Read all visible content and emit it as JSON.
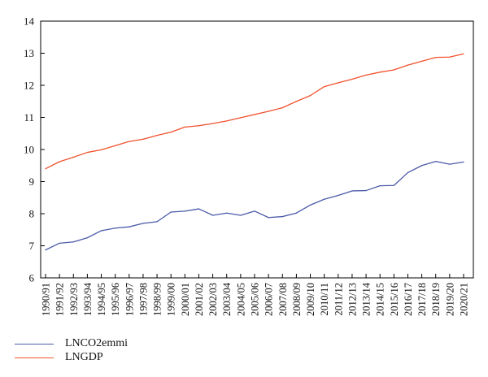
{
  "chart_data": {
    "type": "line",
    "title": "",
    "xlabel": "",
    "ylabel": "",
    "ylim": [
      6,
      14
    ],
    "yticks": [
      6,
      7,
      8,
      9,
      10,
      11,
      12,
      13,
      14
    ],
    "grid": false,
    "legend_position": "bottom-left",
    "categories": [
      "1990/91",
      "1991/92",
      "1992/93",
      "1993/94",
      "1994/95",
      "1995/96",
      "1996/97",
      "1997/98",
      "1998/99",
      "1999/00",
      "2000/01",
      "2001/02",
      "2002/03",
      "2003/04",
      "2004/05",
      "2005/06",
      "2006/07",
      "2007/08",
      "2008/09",
      "2009/10",
      "2010/11",
      "2011/12",
      "2012/13",
      "2013/14",
      "2014/15",
      "2015/16",
      "2016/17",
      "2017/18",
      "2018/19",
      "2019/20",
      "2020/21"
    ],
    "series": [
      {
        "name": "LNCO2emmi",
        "color": "#4a5aa8",
        "values": [
          6.87,
          7.08,
          7.12,
          7.25,
          7.47,
          7.55,
          7.59,
          7.7,
          7.75,
          8.05,
          8.08,
          8.15,
          7.95,
          8.02,
          7.95,
          8.08,
          7.88,
          7.91,
          8.02,
          8.27,
          8.45,
          8.57,
          8.71,
          8.72,
          8.87,
          8.88,
          9.28,
          9.5,
          9.63,
          9.54,
          9.61
        ]
      },
      {
        "name": "LNGDP",
        "color": "#f0522d",
        "values": [
          9.4,
          9.62,
          9.76,
          9.91,
          9.99,
          10.12,
          10.25,
          10.32,
          10.44,
          10.54,
          10.7,
          10.74,
          10.81,
          10.89,
          10.99,
          11.09,
          11.19,
          11.3,
          11.5,
          11.68,
          11.96,
          12.08,
          12.19,
          12.32,
          12.41,
          12.48,
          12.63,
          12.75,
          12.87,
          12.88,
          12.98
        ]
      }
    ]
  }
}
